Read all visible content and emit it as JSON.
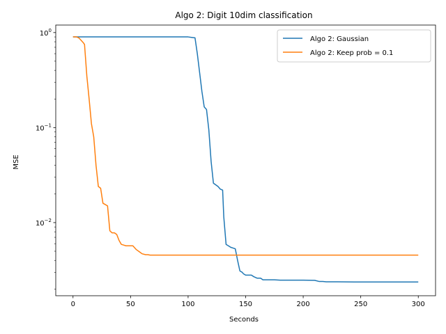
{
  "chart_data": {
    "type": "line",
    "title": "Algo 2: Digit 10dim classification",
    "xlabel": "Seconds",
    "ylabel": "MSE",
    "xlim": [
      -15,
      315
    ],
    "ylim": [
      0.0017,
      1.2
    ],
    "yscale": "log",
    "xticks": [
      0,
      50,
      100,
      150,
      200,
      250,
      300
    ],
    "xtick_labels": [
      "0",
      "50",
      "100",
      "150",
      "200",
      "250",
      "300"
    ],
    "yticks": [
      1,
      0.1,
      0.01
    ],
    "ytick_labels": [
      {
        "base": "10",
        "exp": "0"
      },
      {
        "base": "10",
        "exp": "−1"
      },
      {
        "base": "10",
        "exp": "−2"
      }
    ],
    "grid": false,
    "legend_position": "top-right",
    "series": [
      {
        "name": "Algo 2: Gaussian",
        "color": "#1f77b4",
        "x": [
          0,
          20,
          40,
          60,
          80,
          100,
          103,
          106,
          108,
          110,
          112,
          114,
          116,
          118,
          120,
          122,
          124,
          126,
          128,
          130,
          131,
          133,
          134,
          135,
          137,
          139,
          141,
          143,
          145,
          147,
          148,
          150,
          152,
          155,
          157,
          160,
          163,
          165,
          167,
          170,
          175,
          180,
          190,
          200,
          210,
          214,
          217,
          220,
          230,
          250,
          270,
          300
        ],
        "y": [
          0.9,
          0.9,
          0.9,
          0.9,
          0.9,
          0.9,
          0.89,
          0.88,
          0.6,
          0.38,
          0.24,
          0.165,
          0.155,
          0.095,
          0.044,
          0.026,
          0.025,
          0.024,
          0.0225,
          0.022,
          0.0115,
          0.0059,
          0.0058,
          0.0057,
          0.0055,
          0.0054,
          0.0053,
          0.004,
          0.0031,
          0.003,
          0.0029,
          0.0028,
          0.0028,
          0.0028,
          0.0027,
          0.0026,
          0.0026,
          0.0025,
          0.0025,
          0.0025,
          0.0025,
          0.00248,
          0.00248,
          0.00248,
          0.00247,
          0.0024,
          0.0024,
          0.00238,
          0.00238,
          0.00237,
          0.00237,
          0.00237
        ]
      },
      {
        "name": "Algo 2: Keep prob = 0.1",
        "color": "#ff7f0e",
        "x": [
          0,
          3,
          5,
          7,
          9,
          10,
          12,
          14,
          16,
          18,
          20,
          22,
          24,
          26,
          28,
          30,
          32,
          34,
          36,
          38,
          40,
          42,
          44,
          46,
          48,
          50,
          52,
          55,
          58,
          60,
          63,
          65,
          67,
          70,
          75,
          80,
          100,
          150,
          200,
          250,
          300
        ],
        "y": [
          0.9,
          0.9,
          0.88,
          0.83,
          0.78,
          0.75,
          0.35,
          0.2,
          0.11,
          0.08,
          0.04,
          0.024,
          0.023,
          0.016,
          0.0155,
          0.015,
          0.0082,
          0.0078,
          0.0078,
          0.0075,
          0.0065,
          0.0059,
          0.0058,
          0.0057,
          0.0057,
          0.0057,
          0.0057,
          0.0052,
          0.0049,
          0.0047,
          0.0046,
          0.0046,
          0.00455,
          0.00455,
          0.00455,
          0.00455,
          0.00455,
          0.00455,
          0.00455,
          0.00455,
          0.00455
        ]
      }
    ]
  }
}
